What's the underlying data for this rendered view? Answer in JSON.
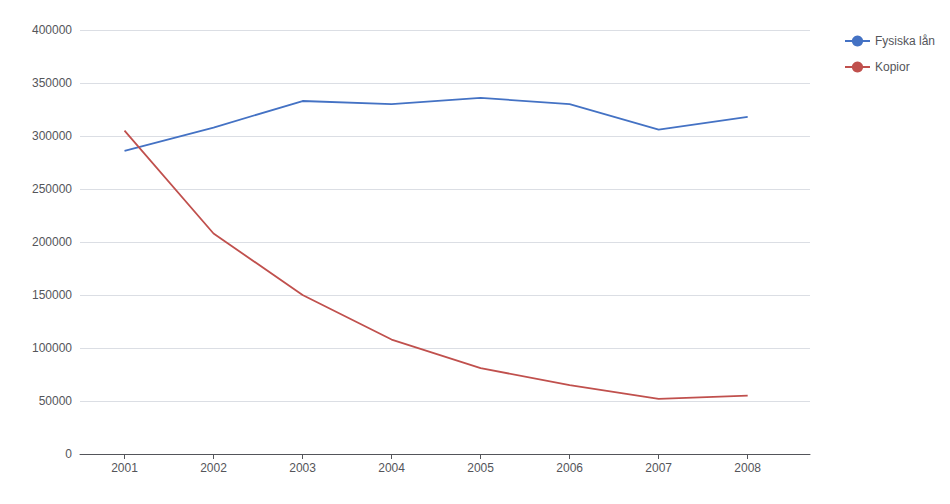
{
  "chart_data": {
    "type": "line",
    "x": [
      2001,
      2002,
      2003,
      2004,
      2005,
      2006,
      2007,
      2008
    ],
    "series": [
      {
        "name": "Fysiska lån",
        "color": "#4472C4",
        "values": [
          286000,
          308000,
          333000,
          330000,
          336000,
          330000,
          306000,
          318000
        ]
      },
      {
        "name": "Kopior",
        "color": "#C0504D",
        "values": [
          305000,
          208000,
          150000,
          108000,
          81000,
          65000,
          52000,
          55000
        ]
      }
    ],
    "xlim": [
      2000.5,
      2008.7
    ],
    "xticks": [
      2001,
      2002,
      2003,
      2004,
      2005,
      2006,
      2007,
      2008
    ],
    "ylim": [
      0,
      400000
    ],
    "yticks": [
      0,
      50000,
      100000,
      150000,
      200000,
      250000,
      300000,
      350000,
      400000
    ],
    "grid": true,
    "legend": "upper right"
  }
}
